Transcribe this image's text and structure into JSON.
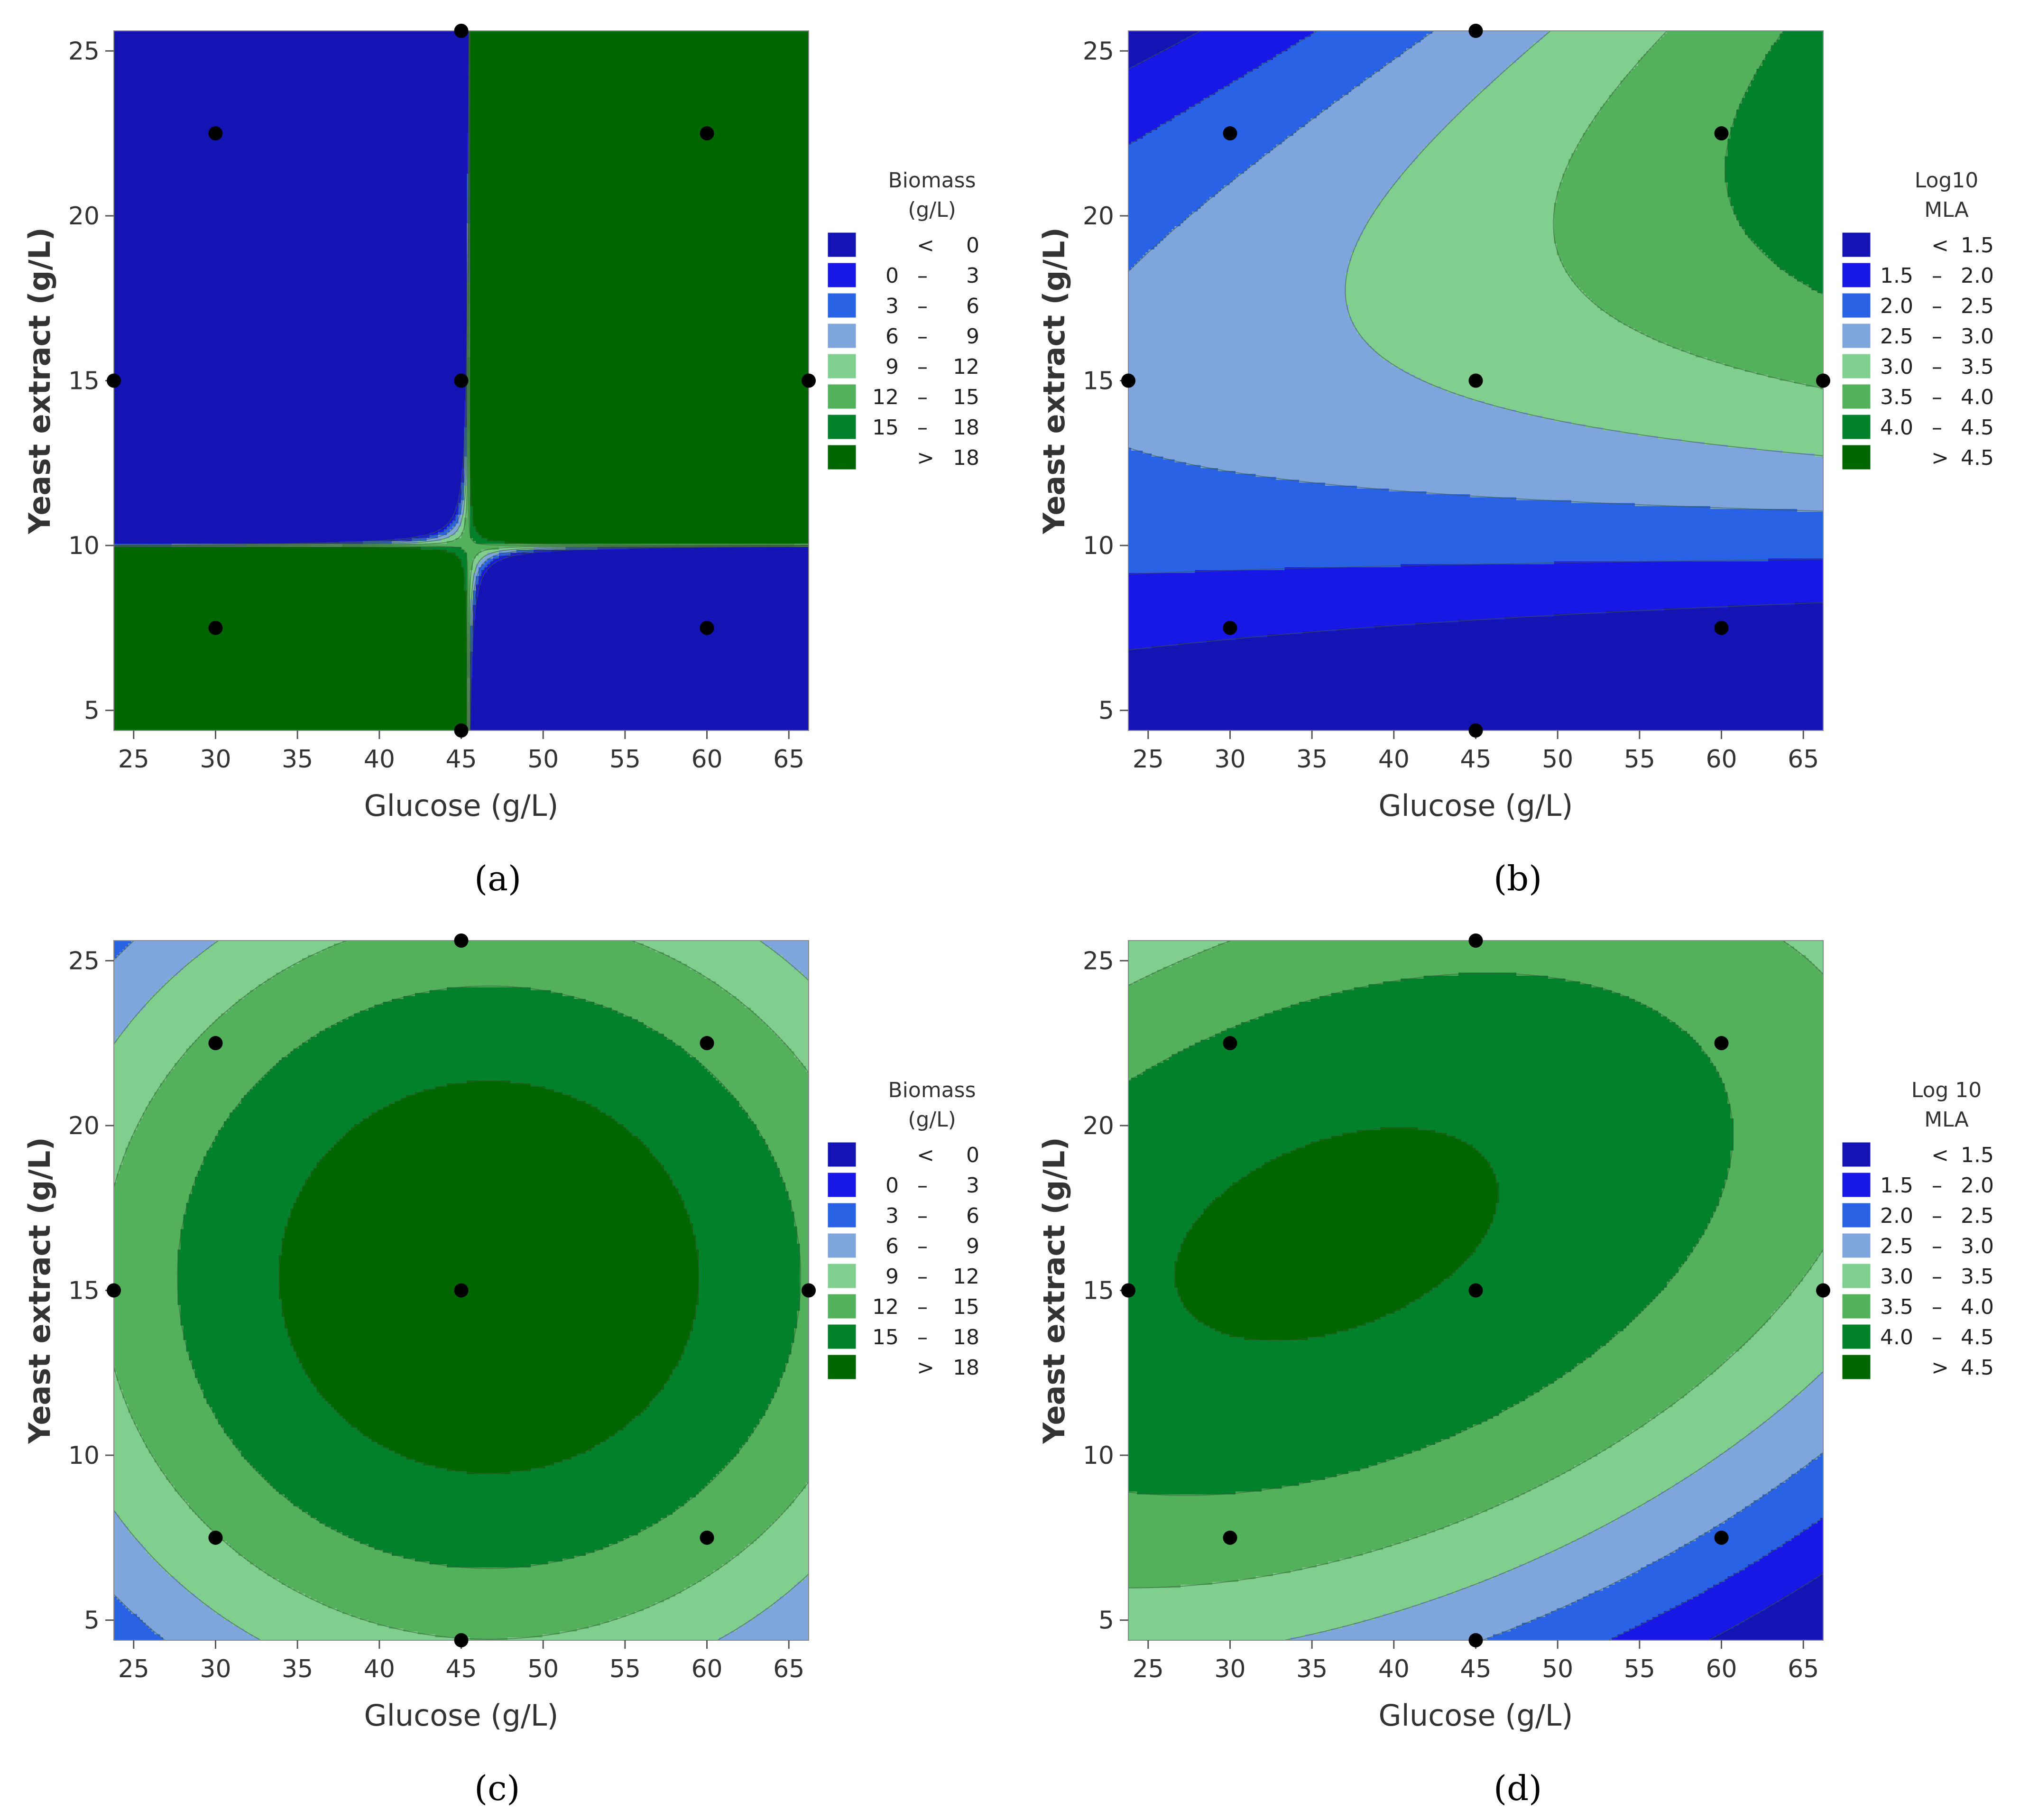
{
  "chart_data": [
    {
      "type": "contour",
      "panel": "a",
      "caption": "(a)",
      "xlabel": "Glucose (g/L)",
      "ylabel": "Yeast extract  (g/L)",
      "xlim": [
        23.79,
        66.21
      ],
      "ylim": [
        4.39,
        25.61
      ],
      "xticks": [
        25,
        30,
        35,
        40,
        45,
        50,
        55,
        60,
        65
      ],
      "yticks": [
        5,
        10,
        15,
        20,
        25
      ],
      "legend": {
        "title": [
          "Biomass",
          "(g/L)"
        ],
        "entries": [
          {
            "label": [
              "<",
              "0"
            ],
            "color": "#1414b4"
          },
          {
            "label": [
              "0",
              "–",
              "3"
            ],
            "color": "#1818e6"
          },
          {
            "label": [
              "3",
              "–",
              "6"
            ],
            "color": "#2a62e6"
          },
          {
            "label": [
              "6",
              "–",
              "9"
            ],
            "color": "#7fa6dc"
          },
          {
            "label": [
              "9",
              "–",
              "12"
            ],
            "color": "#80cf8e"
          },
          {
            "label": [
              "12",
              "–",
              "15"
            ],
            "color": "#52b15a"
          },
          {
            "label": [
              "15",
              "–",
              "18"
            ],
            "color": "#01812a"
          },
          {
            "label": [
              ">",
              "18"
            ],
            "color": "#006600"
          }
        ]
      },
      "thresholds": [
        0,
        3,
        6,
        9,
        12,
        15,
        18
      ],
      "model": {
        "b0": 17.6,
        "x0": 45.5,
        "y0": 15.5,
        "ax": 0.0154,
        "ay": 0.106,
        "cxy": 0.02,
        "sx": 17,
        "sy": 7.5
      },
      "design_points": [
        [
          45,
          25.61
        ],
        [
          30,
          22.5
        ],
        [
          60,
          22.5
        ],
        [
          23.79,
          15
        ],
        [
          45,
          15
        ],
        [
          66.21,
          15
        ],
        [
          30,
          7.5
        ],
        [
          60,
          7.5
        ],
        [
          45,
          4.39
        ]
      ]
    },
    {
      "type": "contour",
      "panel": "b",
      "caption": "(b)",
      "xlabel": "Glucose (g/L)",
      "ylabel": "Yeast extract  (g/L)",
      "xlim": [
        23.79,
        66.21
      ],
      "ylim": [
        4.39,
        25.61
      ],
      "xticks": [
        25,
        30,
        35,
        40,
        45,
        50,
        55,
        60,
        65
      ],
      "yticks": [
        5,
        10,
        15,
        20,
        25
      ],
      "legend": {
        "title": [
          "Log10",
          "MLA"
        ],
        "entries": [
          {
            "label": [
              "<",
              "1.5"
            ],
            "color": "#1414b4"
          },
          {
            "label": [
              "1.5",
              "–",
              "2.0"
            ],
            "color": "#1818e6"
          },
          {
            "label": [
              "2.0",
              "–",
              "2.5"
            ],
            "color": "#2a62e6"
          },
          {
            "label": [
              "2.5",
              "–",
              "3.0"
            ],
            "color": "#7fa6dc"
          },
          {
            "label": [
              "3.0",
              "–",
              "3.5"
            ],
            "color": "#80cf8e"
          },
          {
            "label": [
              "3.5",
              "–",
              "4.0"
            ],
            "color": "#52b15a"
          },
          {
            "label": [
              "4.0",
              "–",
              "4.5"
            ],
            "color": "#01812a"
          },
          {
            "label": [
              ">",
              "4.5"
            ],
            "color": "#006600"
          }
        ]
      },
      "thresholds": [
        1.5,
        2.0,
        2.5,
        3.0,
        3.5,
        4.0,
        4.5
      ],
      "model": {
        "b0": 3.3,
        "x0": 45,
        "y0": 19,
        "ax": 0,
        "ay": 0.0142,
        "cxy": 0,
        "sx": 0.0045,
        "sy": 0.0
      },
      "design_points": [
        [
          45,
          25.61
        ],
        [
          30,
          22.5
        ],
        [
          60,
          22.5
        ],
        [
          23.79,
          15
        ],
        [
          45,
          15
        ],
        [
          66.21,
          15
        ],
        [
          30,
          7.5
        ],
        [
          60,
          7.5
        ],
        [
          45,
          4.39
        ]
      ]
    },
    {
      "type": "contour",
      "panel": "c",
      "caption": "(c)",
      "xlabel": "Glucose (g/L)",
      "ylabel": "Yeast extract  (g/L)",
      "xlim": [
        23.79,
        66.21
      ],
      "ylim": [
        4.39,
        25.61
      ],
      "xticks": [
        25,
        30,
        35,
        40,
        45,
        50,
        55,
        60,
        65
      ],
      "yticks": [
        5,
        10,
        15,
        20,
        25
      ],
      "legend": {
        "title": [
          "Biomass",
          "(g/L)"
        ],
        "entries": [
          {
            "label": [
              "<",
              "0"
            ],
            "color": "#1414b4"
          },
          {
            "label": [
              "0",
              "–",
              "3"
            ],
            "color": "#1818e6"
          },
          {
            "label": [
              "3",
              "–",
              "6"
            ],
            "color": "#2a62e6"
          },
          {
            "label": [
              "6",
              "–",
              "9"
            ],
            "color": "#7fa6dc"
          },
          {
            "label": [
              "9",
              "–",
              "12"
            ],
            "color": "#80cf8e"
          },
          {
            "label": [
              "12",
              "–",
              "15"
            ],
            "color": "#52b15a"
          },
          {
            "label": [
              "15",
              "–",
              "18"
            ],
            "color": "#01812a"
          },
          {
            "label": [
              ">",
              "18"
            ],
            "color": "#006600"
          }
        ]
      },
      "thresholds": [
        0,
        3,
        6,
        9,
        12,
        15,
        18
      ],
      "model": {
        "b0": 20.5,
        "x0": 46.7,
        "y0": 15.4,
        "ax": 0.0152,
        "ay": 0.0705,
        "cxy": 0,
        "sx": 0,
        "sy": 0
      },
      "design_points": [
        [
          45,
          25.61
        ],
        [
          30,
          22.5
        ],
        [
          60,
          22.5
        ],
        [
          23.79,
          15
        ],
        [
          45,
          15
        ],
        [
          66.21,
          15
        ],
        [
          30,
          7.5
        ],
        [
          60,
          7.5
        ],
        [
          45,
          4.39
        ]
      ]
    },
    {
      "type": "contour",
      "panel": "d",
      "caption": "(d)",
      "xlabel": "Glucose (g/L)",
      "ylabel": "Yeast extract  (g/L)",
      "xlim": [
        23.79,
        66.21
      ],
      "ylim": [
        4.39,
        25.61
      ],
      "xticks": [
        25,
        30,
        35,
        40,
        45,
        50,
        55,
        60,
        65
      ],
      "yticks": [
        5,
        10,
        15,
        20,
        25
      ],
      "legend": {
        "title": [
          "Log 10",
          "MLA"
        ],
        "entries": [
          {
            "label": [
              "<",
              "1.5"
            ],
            "color": "#1414b4"
          },
          {
            "label": [
              "1.5",
              "–",
              "2.0"
            ],
            "color": "#1818e6"
          },
          {
            "label": [
              "2.0",
              "–",
              "2.5"
            ],
            "color": "#2a62e6"
          },
          {
            "label": [
              "2.5",
              "–",
              "3.0"
            ],
            "color": "#7fa6dc"
          },
          {
            "label": [
              "3.0",
              "–",
              "3.5"
            ],
            "color": "#80cf8e"
          },
          {
            "label": [
              "3.5",
              "–",
              "4.0"
            ],
            "color": "#52b15a"
          },
          {
            "label": [
              "4.0",
              "–",
              "4.5"
            ],
            "color": "#01812a"
          },
          {
            "label": [
              ">",
              "4.5"
            ],
            "color": "#006600"
          }
        ]
      },
      "thresholds": [
        1.5,
        2.0,
        2.5,
        3.0,
        3.5,
        4.0,
        4.5
      ],
      "model": {
        "b0": 4.6,
        "x0": 36.5,
        "y0": 16.7,
        "ax": 0.0012,
        "ay": 0.0112,
        "cxy": -0.0028,
        "sx": 0,
        "sy": 0
      },
      "design_points": [
        [
          45,
          25.61
        ],
        [
          30,
          22.5
        ],
        [
          60,
          22.5
        ],
        [
          23.79,
          15
        ],
        [
          45,
          15
        ],
        [
          66.21,
          15
        ],
        [
          30,
          7.5
        ],
        [
          60,
          7.5
        ],
        [
          45,
          4.39
        ]
      ]
    }
  ]
}
